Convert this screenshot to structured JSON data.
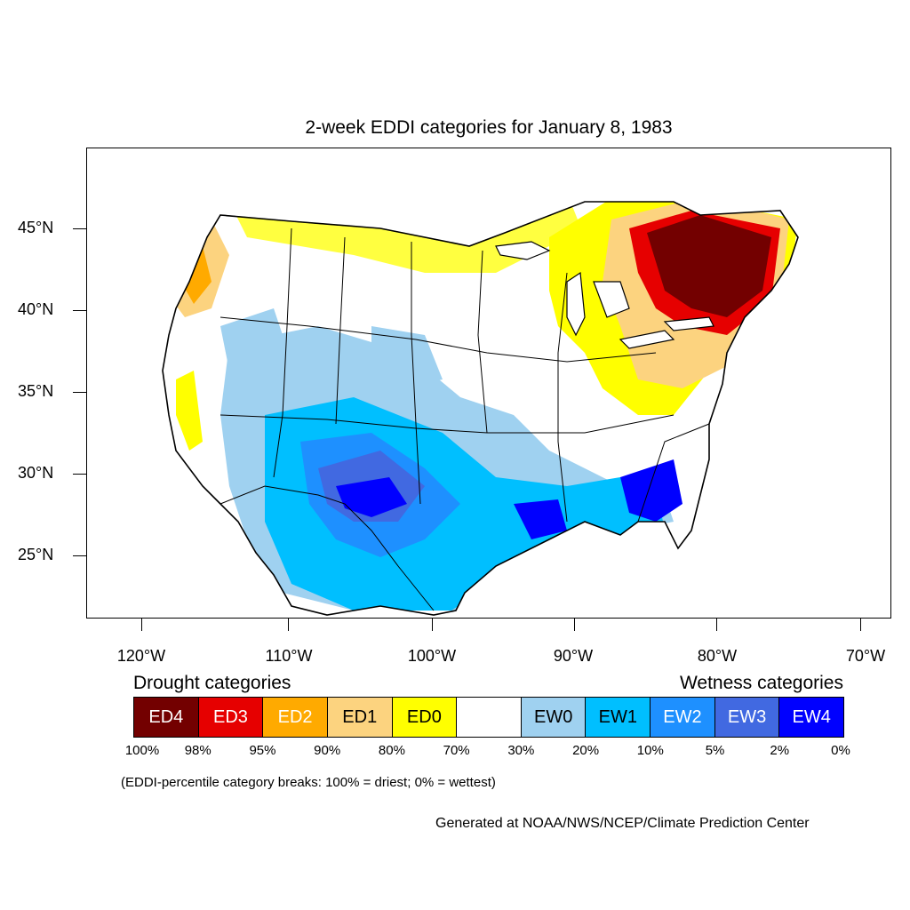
{
  "title": "2-week EDDI categories for January 8, 1983",
  "lat_labels": [
    "45°N",
    "40°N",
    "35°N",
    "30°N",
    "25°N"
  ],
  "lon_labels": [
    "120°W",
    "110°W",
    "100°W",
    "90°W",
    "80°W",
    "70°W"
  ],
  "drought_heading": "Drought categories",
  "wetness_heading": "Wetness categories",
  "legend": [
    {
      "label": "ED4",
      "color": "#730000",
      "text_color": "#ffffff"
    },
    {
      "label": "ED3",
      "color": "#e60000",
      "text_color": "#ffffff"
    },
    {
      "label": "ED2",
      "color": "#ffaa00",
      "text_color": "#ffffff"
    },
    {
      "label": "ED1",
      "color": "#fcd37f",
      "text_color": "#000000"
    },
    {
      "label": "ED0",
      "color": "#ffff00",
      "text_color": "#000000"
    },
    {
      "label": "",
      "color": "#ffffff",
      "text_color": "#000000"
    },
    {
      "label": "EW0",
      "color": "#9fd1f0",
      "text_color": "#000000"
    },
    {
      "label": "EW1",
      "color": "#00bfff",
      "text_color": "#000000"
    },
    {
      "label": "EW2",
      "color": "#1e90ff",
      "text_color": "#ffffff"
    },
    {
      "label": "EW3",
      "color": "#4169e1",
      "text_color": "#ffffff"
    },
    {
      "label": "EW4",
      "color": "#0000ff",
      "text_color": "#ffffff"
    }
  ],
  "percent_breaks": [
    "100%",
    "98%",
    "95%",
    "90%",
    "80%",
    "70%",
    "30%",
    "20%",
    "10%",
    "5%",
    "2%",
    "0%"
  ],
  "note": "(EDDI-percentile category breaks: 100% = driest; 0% = wettest)",
  "credit": "Generated at NOAA/NWS/NCEP/Climate Prediction Center"
}
